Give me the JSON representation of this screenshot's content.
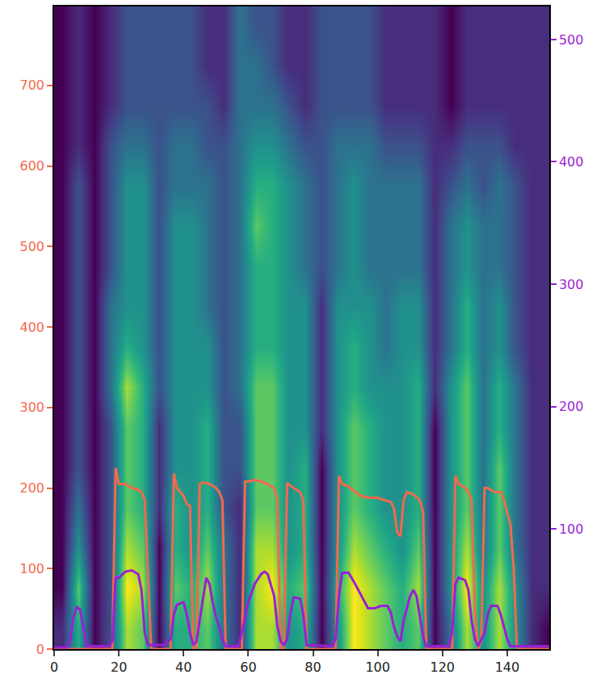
{
  "chart_data": {
    "type": "heatmap",
    "xlim": [
      0,
      153
    ],
    "xticks": [
      0,
      20,
      40,
      60,
      80,
      100,
      120,
      140
    ],
    "ylim": [
      0,
      798
    ],
    "yticks": [
      0,
      100,
      200,
      300,
      400,
      500,
      600,
      700
    ],
    "y2lim": [
      1.7,
      527
    ],
    "y2ticks": [
      100,
      200,
      300,
      400,
      500
    ],
    "grid": false,
    "heatmap": {
      "color": "viridis",
      "x": [
        2.5,
        7.5,
        12.5,
        17.5,
        22.5,
        27.5,
        32.5,
        37.5,
        42.5,
        47.5,
        52.5,
        57.5,
        62.5,
        67.5,
        72.5,
        77.5,
        82.5,
        87.5,
        92.5,
        97.5,
        102.5,
        107.5,
        112.5,
        117.5,
        122.5,
        127.5,
        132.5,
        137.5,
        142.5,
        147.5,
        152.5
      ],
      "y": [
        25,
        75,
        125,
        175,
        225,
        275,
        325,
        375,
        425,
        475,
        525,
        575,
        625,
        675,
        725,
        775
      ],
      "cells": [
        [
          2,
          1,
          1,
          1,
          1,
          1,
          1,
          1,
          1,
          1,
          1,
          1,
          1,
          1,
          1,
          1
        ],
        [
          6,
          7,
          5,
          4,
          3,
          3,
          3,
          3,
          3,
          3,
          3,
          3,
          2,
          2,
          2,
          2
        ],
        [
          1,
          1,
          1,
          1,
          1,
          1,
          1,
          1,
          1,
          1,
          1,
          1,
          1,
          1,
          1,
          1
        ],
        [
          3,
          3,
          3,
          3,
          3,
          3,
          4,
          4,
          4,
          3,
          3,
          3,
          3,
          2,
          2,
          2
        ],
        [
          8,
          9,
          8,
          7,
          7,
          7,
          8,
          6,
          5,
          5,
          5,
          5,
          4,
          3,
          3,
          3
        ],
        [
          7,
          8,
          7,
          6,
          6,
          6,
          6,
          5,
          5,
          5,
          5,
          5,
          4,
          3,
          3,
          3
        ],
        [
          1,
          1,
          1,
          2,
          2,
          2,
          3,
          3,
          3,
          3,
          3,
          3,
          3,
          3,
          3,
          3
        ],
        [
          6,
          7,
          6,
          6,
          5,
          5,
          5,
          5,
          5,
          5,
          5,
          4,
          4,
          3,
          3,
          3
        ],
        [
          6,
          6,
          5,
          5,
          5,
          5,
          5,
          5,
          5,
          5,
          5,
          4,
          4,
          3,
          3,
          3
        ],
        [
          7,
          8,
          7,
          6,
          6,
          6,
          5,
          5,
          4,
          4,
          4,
          4,
          3,
          3,
          2,
          2
        ],
        [
          4,
          4,
          4,
          3,
          3,
          3,
          3,
          3,
          3,
          3,
          3,
          3,
          3,
          2,
          2,
          2
        ],
        [
          2,
          2,
          2,
          2,
          3,
          3,
          4,
          4,
          4,
          4,
          4,
          4,
          4,
          4,
          4,
          4
        ],
        [
          8,
          8,
          8,
          7,
          7,
          7,
          7,
          6,
          6,
          6,
          7,
          6,
          5,
          4,
          4,
          3
        ],
        [
          8,
          9,
          8,
          7,
          7,
          7,
          7,
          6,
          6,
          6,
          6,
          6,
          5,
          4,
          3,
          3
        ],
        [
          5,
          6,
          5,
          5,
          5,
          5,
          5,
          5,
          5,
          5,
          5,
          5,
          4,
          3,
          2,
          2
        ],
        [
          6,
          7,
          6,
          6,
          6,
          5,
          5,
          5,
          5,
          4,
          4,
          4,
          3,
          2,
          2,
          2
        ],
        [
          1,
          1,
          1,
          1,
          1,
          2,
          2,
          2,
          2,
          3,
          3,
          3,
          3,
          3,
          3,
          3
        ],
        [
          5,
          6,
          5,
          5,
          5,
          5,
          5,
          5,
          5,
          4,
          4,
          4,
          4,
          3,
          3,
          3
        ],
        [
          9,
          9,
          8,
          7,
          7,
          7,
          6,
          6,
          5,
          5,
          5,
          5,
          4,
          3,
          3,
          3
        ],
        [
          8,
          8,
          7,
          6,
          6,
          6,
          5,
          5,
          5,
          4,
          4,
          4,
          4,
          3,
          3,
          3
        ],
        [
          7,
          7,
          6,
          5,
          5,
          5,
          5,
          4,
          4,
          4,
          4,
          4,
          3,
          2,
          2,
          2
        ],
        [
          6,
          6,
          5,
          5,
          5,
          5,
          5,
          5,
          5,
          4,
          4,
          4,
          3,
          2,
          2,
          2
        ],
        [
          7,
          8,
          7,
          6,
          6,
          6,
          6,
          5,
          5,
          4,
          4,
          4,
          3,
          2,
          2,
          2
        ],
        [
          1,
          1,
          1,
          1,
          1,
          1,
          2,
          2,
          2,
          2,
          2,
          2,
          2,
          2,
          2,
          2
        ],
        [
          4,
          5,
          5,
          5,
          5,
          5,
          5,
          4,
          4,
          4,
          4,
          3,
          2,
          1,
          1,
          1
        ],
        [
          8,
          9,
          8,
          7,
          7,
          7,
          7,
          6,
          6,
          5,
          5,
          4,
          3,
          2,
          2,
          2
        ],
        [
          5,
          5,
          4,
          4,
          4,
          4,
          4,
          4,
          4,
          4,
          4,
          3,
          3,
          2,
          2,
          2
        ],
        [
          8,
          8,
          7,
          7,
          7,
          6,
          6,
          5,
          5,
          4,
          4,
          4,
          3,
          2,
          2,
          2
        ],
        [
          5,
          5,
          4,
          4,
          4,
          4,
          4,
          3,
          3,
          3,
          3,
          3,
          2,
          2,
          2,
          2
        ],
        [
          2,
          2,
          2,
          2,
          2,
          2,
          2,
          2,
          2,
          2,
          2,
          2,
          2,
          2,
          2,
          2
        ],
        [
          1,
          2,
          2,
          2,
          2,
          2,
          2,
          2,
          2,
          2,
          2,
          2,
          2,
          2,
          2,
          2
        ]
      ]
    },
    "series": [
      {
        "type": "line",
        "color": "#f4694c",
        "x": [
          0,
          18,
          19,
          20,
          22,
          24,
          26,
          27,
          28,
          29,
          30,
          36,
          37,
          38,
          40,
          41,
          42,
          43,
          44,
          45,
          46,
          48,
          50,
          51,
          52,
          53,
          58,
          59,
          60,
          62,
          64,
          66,
          68,
          69,
          70,
          71,
          72,
          74,
          76,
          77,
          78,
          87,
          88,
          89,
          91,
          93,
          95,
          97,
          100,
          102,
          104,
          105,
          106,
          107,
          108,
          109,
          111,
          113,
          114,
          115,
          123,
          124,
          125,
          127,
          128,
          129,
          130,
          131,
          132,
          133,
          134,
          136,
          138,
          139,
          140,
          141,
          142,
          143,
          153
        ],
        "values": [
          0,
          0,
          225,
          205,
          205,
          200,
          198,
          195,
          185,
          100,
          0,
          0,
          218,
          200,
          190,
          180,
          178,
          0,
          0,
          205,
          207,
          205,
          200,
          195,
          185,
          0,
          0,
          208,
          208,
          210,
          208,
          205,
          200,
          185,
          0,
          0,
          206,
          200,
          195,
          185,
          0,
          0,
          215,
          205,
          202,
          195,
          190,
          188,
          188,
          185,
          183,
          175,
          145,
          140,
          185,
          195,
          192,
          185,
          170,
          0,
          0,
          215,
          205,
          200,
          195,
          185,
          50,
          0,
          10,
          200,
          200,
          195,
          195,
          185,
          170,
          155,
          100,
          0,
          0
        ]
      },
      {
        "type": "line",
        "color": "#9b1fd6",
        "axis": "y2",
        "x": [
          0,
          4,
          5,
          6,
          7,
          8,
          9,
          10,
          17,
          18,
          19,
          20,
          22,
          24,
          26,
          27,
          28,
          29,
          34,
          36,
          37,
          38,
          40,
          41,
          42,
          43,
          44,
          45,
          46,
          47,
          48,
          49,
          50,
          51,
          52,
          53,
          57,
          58,
          60,
          62,
          64,
          65,
          66,
          68,
          69,
          70,
          71,
          72,
          73,
          74,
          76,
          77,
          78,
          86,
          87,
          88,
          89,
          91,
          93,
          95,
          97,
          99,
          101,
          103,
          104,
          105,
          106,
          107,
          108,
          110,
          111,
          112,
          113,
          114,
          115,
          122,
          123,
          124,
          125,
          127,
          128,
          129,
          130,
          131,
          133,
          134,
          135,
          137,
          138,
          139,
          140,
          141,
          153
        ],
        "values": [
          3,
          3,
          10,
          28,
          36,
          34,
          20,
          4,
          4,
          8,
          60,
          60,
          65,
          66,
          63,
          50,
          15,
          5,
          5,
          10,
          30,
          38,
          40,
          30,
          15,
          5,
          8,
          25,
          45,
          60,
          55,
          40,
          28,
          20,
          10,
          4,
          4,
          15,
          40,
          55,
          63,
          65,
          63,
          45,
          20,
          8,
          5,
          10,
          30,
          44,
          43,
          30,
          5,
          4,
          10,
          45,
          64,
          64,
          55,
          45,
          35,
          35,
          37,
          37,
          32,
          20,
          12,
          8,
          25,
          45,
          50,
          45,
          28,
          12,
          4,
          4,
          15,
          55,
          60,
          58,
          50,
          25,
          10,
          4,
          15,
          30,
          37,
          37,
          30,
          20,
          10,
          4,
          4
        ]
      }
    ]
  }
}
